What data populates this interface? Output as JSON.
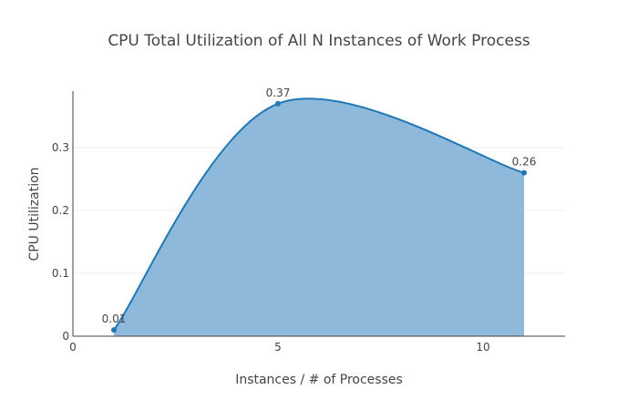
{
  "chart_data": {
    "type": "area",
    "title": "CPU Total Utilization of All N Instances of Work Process",
    "xlabel": "Instances / # of Processes",
    "ylabel": "CPU Utilization",
    "xlim": [
      0,
      12
    ],
    "ylim": [
      0,
      0.39
    ],
    "x_ticks": [
      0,
      5,
      10
    ],
    "x_tick_labels": [
      "0",
      "5",
      "10"
    ],
    "y_ticks": [
      0,
      0.1,
      0.2,
      0.3
    ],
    "y_tick_labels": [
      "0",
      "0.1",
      "0.2",
      "0.3"
    ],
    "grid": true,
    "line_shape": "spline",
    "series": [
      {
        "x": [
          1,
          5,
          11
        ],
        "y": [
          0.01,
          0.37,
          0.26
        ],
        "labels": [
          "0.01",
          "0.37",
          "0.26"
        ],
        "color": "#1f77b4",
        "fill_color": "#8fb9da"
      }
    ]
  }
}
